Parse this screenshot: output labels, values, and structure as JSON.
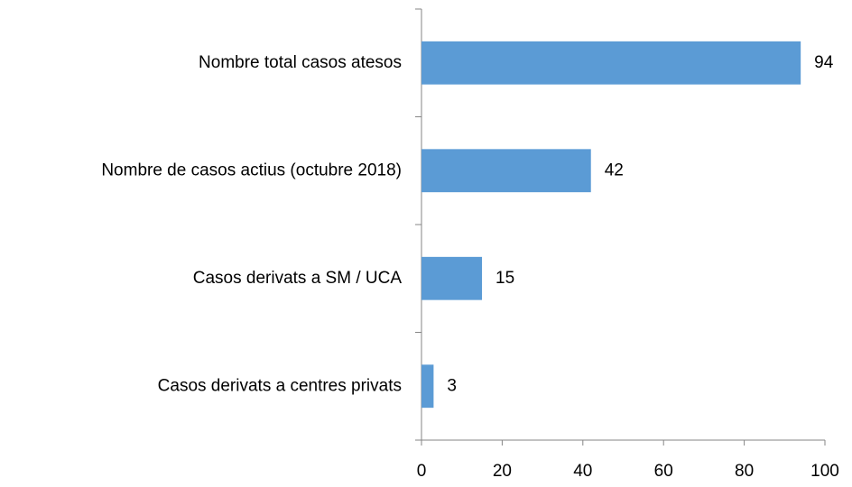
{
  "chart_data": {
    "type": "bar",
    "orientation": "horizontal",
    "categories": [
      "Nombre total casos atesos",
      "Nombre de casos actius (octubre 2018)",
      "Casos derivats a SM / UCA",
      "Casos derivats a centres privats"
    ],
    "values": [
      94,
      42,
      15,
      3
    ],
    "color": "#5b9bd5",
    "xlim": [
      0,
      100
    ],
    "xticks": [
      0,
      20,
      40,
      60,
      80,
      100
    ],
    "grid": false,
    "data_labels": true
  }
}
